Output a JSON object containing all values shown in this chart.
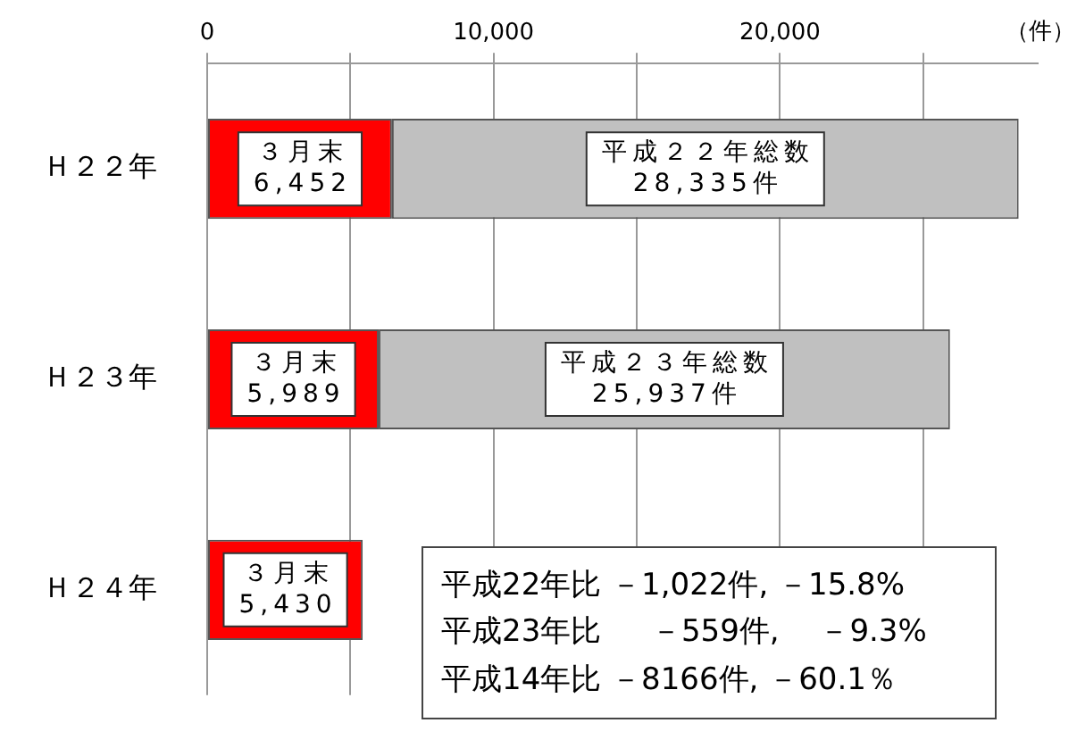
{
  "chart_data": {
    "type": "bar",
    "orientation": "horizontal",
    "stacked": true,
    "categories": [
      "Ｈ２２年",
      "Ｈ２３年",
      "Ｈ２４年"
    ],
    "xlabel": "（件）",
    "series": [
      {
        "color": "#ff0000",
        "values": [
          6452,
          5989,
          5430
        ],
        "value_labels": [
          "３月末\n6,452",
          "３月末\n5,989",
          "３月末\n5,430"
        ]
      },
      {
        "color": "#c0c0c0",
        "values": [
          21883,
          19948,
          null
        ]
      }
    ],
    "totals": [
      "平成２２年総数\n28,335件",
      "平成２３年総数\n25,937件",
      null
    ],
    "xlim": [
      0,
      29000
    ],
    "xticks": [
      0,
      {
        "value": 5000,
        "label": null
      },
      {
        "value": 10000,
        "label": "10,000"
      },
      {
        "value": 15000,
        "label": null
      },
      {
        "value": 20000,
        "label": "20,000"
      },
      {
        "value": 25000,
        "label": null
      }
    ],
    "grid": "x",
    "legend": false,
    "annotations": [
      "平成22年比 －1,022件, －15.8%",
      "平成23年比 　 －559件, 　－9.3%",
      "平成14年比 －8166件, －60.1％"
    ]
  }
}
